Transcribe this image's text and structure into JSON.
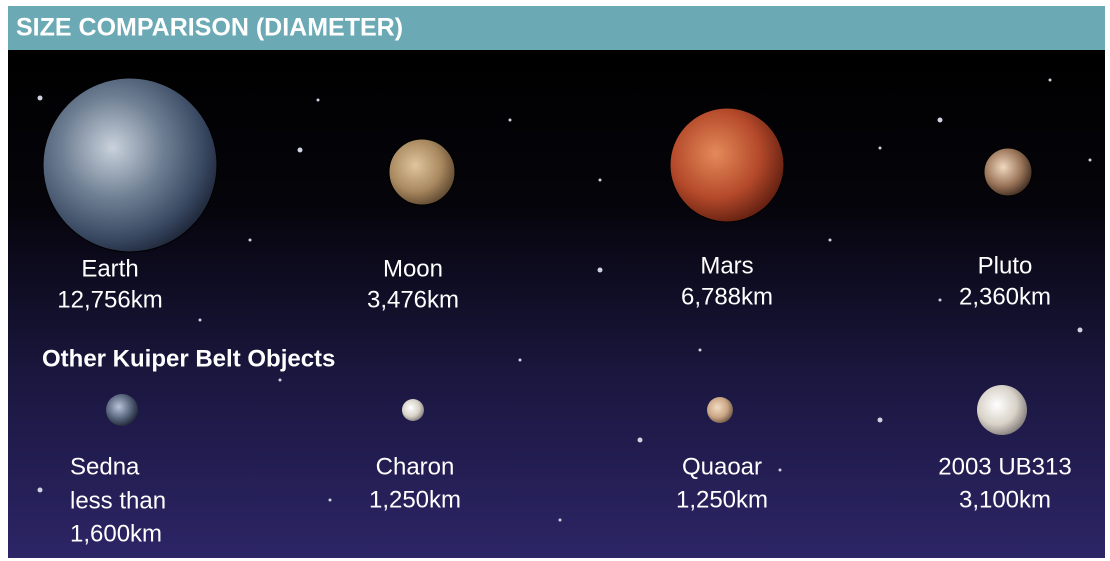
{
  "header": {
    "title": "SIZE COMPARISON (DIAMETER)"
  },
  "planets": [
    {
      "name": "Earth",
      "diameter": "12,756km"
    },
    {
      "name": "Moon",
      "diameter": "3,476km"
    },
    {
      "name": "Mars",
      "diameter": "6,788km"
    },
    {
      "name": "Pluto",
      "diameter": "2,360km"
    }
  ],
  "kuiper": {
    "title": "Other Kuiper Belt Objects",
    "objects": [
      {
        "name": "Sedna",
        "qualifier": "less than",
        "diameter": "1,600km"
      },
      {
        "name": "Charon",
        "diameter": "1,250km"
      },
      {
        "name": "Quaoar",
        "diameter": "1,250km"
      },
      {
        "name": "2003 UB313",
        "diameter": "3,100km"
      }
    ]
  }
}
